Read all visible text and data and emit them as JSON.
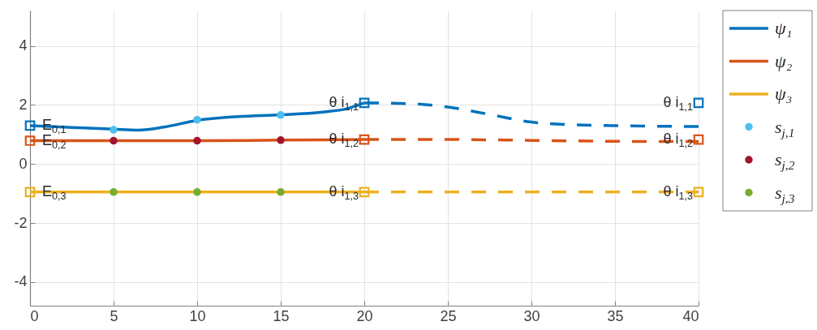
{
  "chart_data": {
    "type": "line",
    "xlim": [
      0,
      40
    ],
    "ylim": [
      -4.8,
      5.2
    ],
    "xticks": [
      0,
      5,
      10,
      15,
      20,
      25,
      30,
      35,
      40
    ],
    "yticks": [
      -4,
      -2,
      0,
      2,
      4
    ],
    "grid": true,
    "legend": "right",
    "series": [
      {
        "name": "ψ₁",
        "color": "#0072bd",
        "x": [
          0,
          2.5,
          5,
          6.5,
          8,
          10,
          12.5,
          15,
          17.5,
          19,
          20
        ],
        "values": [
          1.3,
          1.24,
          1.18,
          1.15,
          1.25,
          1.48,
          1.61,
          1.67,
          1.76,
          1.88,
          2.07
        ]
      },
      {
        "name": "ψ₂",
        "color": "#d95319",
        "x": [
          0,
          5,
          10,
          15,
          20
        ],
        "values": [
          0.79,
          0.79,
          0.79,
          0.81,
          0.83
        ]
      },
      {
        "name": "ψ₃",
        "color": "#edb120",
        "x": [
          0,
          5,
          10,
          15,
          20
        ],
        "values": [
          -0.95,
          -0.95,
          -0.95,
          -0.95,
          -0.95
        ]
      },
      {
        "line_style": "dashed",
        "color": "#0072bd",
        "x": [
          20,
          22.5,
          25,
          27.5,
          30,
          32.5,
          35,
          37.5,
          40
        ],
        "values": [
          2.07,
          2.05,
          1.93,
          1.68,
          1.42,
          1.33,
          1.3,
          1.28,
          1.27
        ]
      },
      {
        "line_style": "dashed",
        "color": "#d95319",
        "x": [
          20,
          25,
          30,
          35,
          40
        ],
        "values": [
          0.83,
          0.83,
          0.8,
          0.77,
          0.76
        ]
      },
      {
        "line_style": "dashed",
        "color": "#edb120",
        "x": [
          20,
          30,
          40
        ],
        "values": [
          -0.95,
          -0.95,
          -0.95
        ]
      },
      {
        "name": "s$_{j,1}$",
        "type": "scatter",
        "marker": "circle",
        "color": "#4dbeee",
        "x": [
          5,
          10,
          15
        ],
        "values": [
          1.16,
          1.5,
          1.66
        ]
      },
      {
        "name": "s$_{j,2}$",
        "type": "scatter",
        "marker": "circle",
        "color": "#a2142f",
        "x": [
          5,
          10,
          15
        ],
        "values": [
          0.79,
          0.79,
          0.81
        ]
      },
      {
        "name": "s$_{j,3}$",
        "type": "scatter",
        "marker": "circle",
        "color": "#77ac30",
        "x": [
          5,
          10,
          15
        ],
        "values": [
          -0.95,
          -0.95,
          -0.95
        ]
      },
      {
        "type": "scatter",
        "marker": "square",
        "color": "#0072bd",
        "x": [
          0,
          20,
          40
        ],
        "values": [
          1.3,
          2.07,
          2.07
        ]
      },
      {
        "type": "scatter",
        "marker": "square",
        "color": "#d95319",
        "x": [
          0,
          20,
          40
        ],
        "values": [
          0.79,
          0.83,
          0.83
        ]
      },
      {
        "type": "scatter",
        "marker": "square",
        "color": "#edb120",
        "x": [
          0,
          20,
          40
        ],
        "values": [
          -0.95,
          -0.95,
          -0.95
        ]
      }
    ],
    "annotations": [
      {
        "text": "E$_{0,1}$",
        "x": 0,
        "y": 1.3
      },
      {
        "text": "E$_{0,2}$",
        "x": 0,
        "y": 0.79
      },
      {
        "text": "E$_{0,3}$",
        "x": 0,
        "y": -0.95
      },
      {
        "text": "θ i$_{1,1}$",
        "x": 20,
        "y": 2.07
      },
      {
        "text": "θ i$_{1,2}$",
        "x": 20,
        "y": 0.83
      },
      {
        "text": "θ i$_{1,3}$",
        "x": 20,
        "y": -0.95
      },
      {
        "text": "θ i$_{1,1}$",
        "x": 40,
        "y": 2.07
      },
      {
        "text": "θ i$_{1,2}$",
        "x": 40,
        "y": 0.83
      },
      {
        "text": "θ i$_{1,3}$",
        "x": 40,
        "y": -0.95
      }
    ]
  }
}
